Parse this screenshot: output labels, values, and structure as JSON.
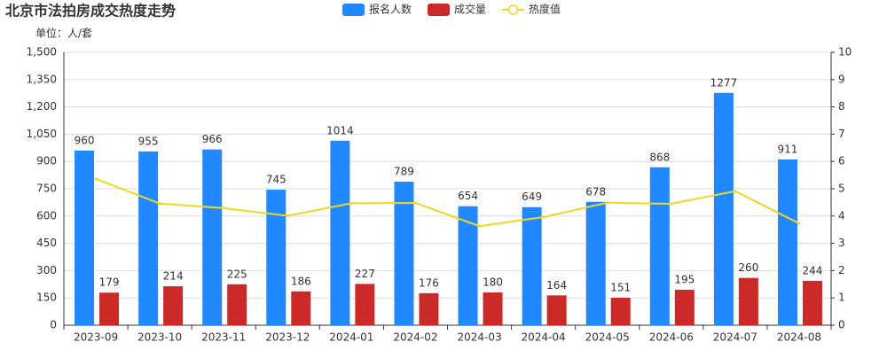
{
  "chart_data": {
    "type": "bar-line",
    "title": "北京市法拍房成交热度走势",
    "subtitle": "单位：人/套",
    "categories": [
      "2023-09",
      "2023-10",
      "2023-11",
      "2023-12",
      "2024-01",
      "2024-02",
      "2024-03",
      "2024-04",
      "2024-05",
      "2024-06",
      "2024-07",
      "2024-08"
    ],
    "series": [
      {
        "name": "报名人数",
        "type": "bar",
        "color": "#2288ff",
        "values": [
          960,
          955,
          966,
          745,
          1014,
          789,
          654,
          649,
          678,
          868,
          1277,
          911
        ]
      },
      {
        "name": "成交量",
        "type": "bar",
        "color": "#cc2a28",
        "values": [
          179,
          214,
          225,
          186,
          227,
          176,
          180,
          164,
          151,
          195,
          260,
          244
        ]
      },
      {
        "name": "热度值",
        "type": "line",
        "axis": "y2",
        "color": "#f0d820",
        "values": [
          5.36,
          4.46,
          4.29,
          4.01,
          4.47,
          4.48,
          3.63,
          3.96,
          4.49,
          4.45,
          4.91,
          3.73
        ]
      }
    ],
    "ylim": [
      0,
      1500
    ],
    "yticks": [
      0,
      150,
      300,
      450,
      600,
      750,
      900,
      {
        "value": 1050,
        "label": "1,050"
      },
      {
        "value": 1200,
        "label": "1,200"
      },
      {
        "value": 1350,
        "label": "1,350"
      },
      {
        "value": 1500,
        "label": "1,500"
      }
    ],
    "y2lim": [
      0,
      10
    ],
    "y2ticks": [
      0,
      1,
      2,
      3,
      4,
      5,
      6,
      7,
      8,
      9,
      10
    ],
    "grid": true
  }
}
